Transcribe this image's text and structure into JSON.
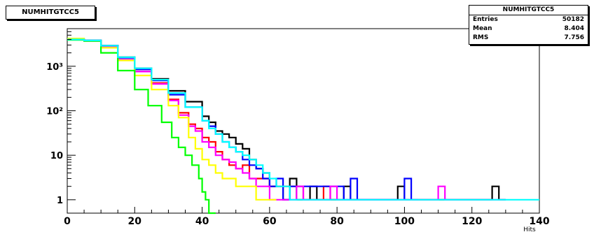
{
  "title": "NUMHITGTCC5",
  "stats": {
    "title": "NUMHITGTCC5",
    "rows": [
      {
        "label": "Entries",
        "value": "50182"
      },
      {
        "label": "Mean",
        "value": "8.404"
      },
      {
        "label": "RMS",
        "value": "7.756"
      }
    ]
  },
  "chart_data": {
    "type": "line",
    "title": "NUMHITGTCC5",
    "xlabel": "Hits",
    "ylabel": "",
    "xlim": [
      0,
      140
    ],
    "ylim": [
      0.5,
      7000
    ],
    "log_y": true,
    "grid": false,
    "x_ticks": [
      0,
      20,
      40,
      60,
      80,
      100,
      120,
      140
    ],
    "y_ticks": [
      {
        "value": 1,
        "label": "1"
      },
      {
        "value": 10,
        "label": "10"
      },
      {
        "value": 100,
        "label": "10²"
      },
      {
        "value": 1000,
        "label": "10³"
      }
    ],
    "series": [
      {
        "color": "#000000",
        "points": [
          [
            0,
            4000
          ],
          [
            5,
            3800
          ],
          [
            10,
            2900
          ],
          [
            15,
            1600
          ],
          [
            20,
            900
          ],
          [
            25,
            520
          ],
          [
            30,
            280
          ],
          [
            35,
            160
          ],
          [
            40,
            75
          ],
          [
            42,
            55
          ],
          [
            44,
            35
          ],
          [
            46,
            30
          ],
          [
            48,
            25
          ],
          [
            50,
            18
          ],
          [
            52,
            14
          ],
          [
            54,
            8
          ],
          [
            56,
            5
          ],
          [
            58,
            4
          ],
          [
            60,
            2
          ],
          [
            62,
            2
          ],
          [
            64,
            1
          ],
          [
            66,
            3
          ],
          [
            68,
            1
          ],
          [
            70,
            1
          ],
          [
            72,
            2
          ],
          [
            74,
            1
          ],
          [
            78,
            1
          ],
          [
            82,
            2
          ],
          [
            84,
            1
          ],
          [
            86,
            1
          ],
          [
            98,
            2
          ],
          [
            100,
            1
          ],
          [
            124,
            1
          ],
          [
            126,
            2
          ],
          [
            128,
            1
          ]
        ]
      },
      {
        "color": "#ff0000",
        "points": [
          [
            0,
            4000
          ],
          [
            5,
            3700
          ],
          [
            10,
            2800
          ],
          [
            15,
            1400
          ],
          [
            20,
            760
          ],
          [
            25,
            420
          ],
          [
            30,
            180
          ],
          [
            33,
            90
          ],
          [
            36,
            50
          ],
          [
            38,
            40
          ],
          [
            40,
            25
          ],
          [
            42,
            20
          ],
          [
            44,
            12
          ],
          [
            46,
            8
          ],
          [
            48,
            6
          ],
          [
            50,
            5
          ],
          [
            52,
            6
          ],
          [
            54,
            3
          ],
          [
            56,
            3
          ],
          [
            60,
            2
          ],
          [
            64,
            2
          ],
          [
            70,
            1
          ],
          [
            74,
            1
          ],
          [
            76,
            2
          ],
          [
            78,
            1
          ]
        ]
      },
      {
        "color": "#0000ff",
        "points": [
          [
            0,
            4000
          ],
          [
            5,
            3800
          ],
          [
            10,
            2900
          ],
          [
            15,
            1550
          ],
          [
            20,
            850
          ],
          [
            25,
            480
          ],
          [
            30,
            230
          ],
          [
            35,
            120
          ],
          [
            40,
            60
          ],
          [
            42,
            45
          ],
          [
            44,
            30
          ],
          [
            46,
            20
          ],
          [
            48,
            15
          ],
          [
            50,
            12
          ],
          [
            52,
            8
          ],
          [
            54,
            6
          ],
          [
            56,
            5
          ],
          [
            58,
            3
          ],
          [
            60,
            2
          ],
          [
            62,
            3
          ],
          [
            64,
            1
          ],
          [
            66,
            2
          ],
          [
            82,
            1
          ],
          [
            84,
            3
          ],
          [
            86,
            1
          ],
          [
            98,
            1
          ],
          [
            100,
            3
          ],
          [
            102,
            1
          ]
        ]
      },
      {
        "color": "#ff00ff",
        "points": [
          [
            0,
            4000
          ],
          [
            5,
            3700
          ],
          [
            10,
            2700
          ],
          [
            15,
            1400
          ],
          [
            20,
            760
          ],
          [
            25,
            400
          ],
          [
            30,
            170
          ],
          [
            33,
            80
          ],
          [
            36,
            45
          ],
          [
            38,
            35
          ],
          [
            40,
            20
          ],
          [
            42,
            15
          ],
          [
            44,
            10
          ],
          [
            46,
            8
          ],
          [
            48,
            7
          ],
          [
            50,
            5
          ],
          [
            52,
            4
          ],
          [
            54,
            3
          ],
          [
            56,
            2
          ],
          [
            58,
            2
          ],
          [
            60,
            1
          ],
          [
            68,
            2
          ],
          [
            70,
            1
          ],
          [
            78,
            2
          ],
          [
            80,
            1
          ],
          [
            110,
            2
          ],
          [
            112,
            1
          ],
          [
            126,
            1
          ],
          [
            128,
            1
          ]
        ]
      },
      {
        "color": "#ffff00",
        "points": [
          [
            0,
            4200
          ],
          [
            5,
            3700
          ],
          [
            10,
            2600
          ],
          [
            15,
            1350
          ],
          [
            20,
            620
          ],
          [
            25,
            300
          ],
          [
            30,
            130
          ],
          [
            33,
            70
          ],
          [
            36,
            25
          ],
          [
            38,
            14
          ],
          [
            40,
            8
          ],
          [
            42,
            6
          ],
          [
            44,
            4
          ],
          [
            46,
            3
          ],
          [
            48,
            3
          ],
          [
            50,
            2
          ],
          [
            52,
            2
          ],
          [
            56,
            1
          ],
          [
            60,
            1
          ]
        ]
      },
      {
        "color": "#00ff00",
        "points": [
          [
            0,
            3900
          ],
          [
            5,
            3700
          ],
          [
            10,
            2000
          ],
          [
            15,
            800
          ],
          [
            20,
            300
          ],
          [
            24,
            130
          ],
          [
            28,
            55
          ],
          [
            31,
            25
          ],
          [
            33,
            15
          ],
          [
            35,
            10
          ],
          [
            37,
            6
          ],
          [
            39,
            3
          ],
          [
            40,
            1.5
          ],
          [
            41,
            1
          ],
          [
            42,
            0
          ]
        ]
      },
      {
        "color": "#00ffff",
        "points": [
          [
            0,
            4000
          ],
          [
            5,
            3800
          ],
          [
            10,
            2900
          ],
          [
            15,
            1600
          ],
          [
            20,
            900
          ],
          [
            25,
            500
          ],
          [
            30,
            250
          ],
          [
            35,
            120
          ],
          [
            40,
            60
          ],
          [
            42,
            40
          ],
          [
            44,
            30
          ],
          [
            46,
            20
          ],
          [
            48,
            15
          ],
          [
            50,
            12
          ],
          [
            52,
            10
          ],
          [
            54,
            8
          ],
          [
            56,
            6
          ],
          [
            58,
            4
          ],
          [
            60,
            3
          ],
          [
            62,
            2
          ],
          [
            64,
            2
          ],
          [
            66,
            1
          ],
          [
            70,
            1
          ],
          [
            74,
            1
          ],
          [
            76,
            1
          ],
          [
            80,
            1
          ],
          [
            88,
            1
          ],
          [
            92,
            1
          ],
          [
            110,
            1
          ],
          [
            114,
            1
          ],
          [
            116,
            1
          ],
          [
            120,
            1
          ],
          [
            128,
            1
          ],
          [
            130,
            1
          ],
          [
            134,
            1
          ],
          [
            138,
            1
          ],
          [
            140,
            1
          ]
        ]
      }
    ]
  }
}
